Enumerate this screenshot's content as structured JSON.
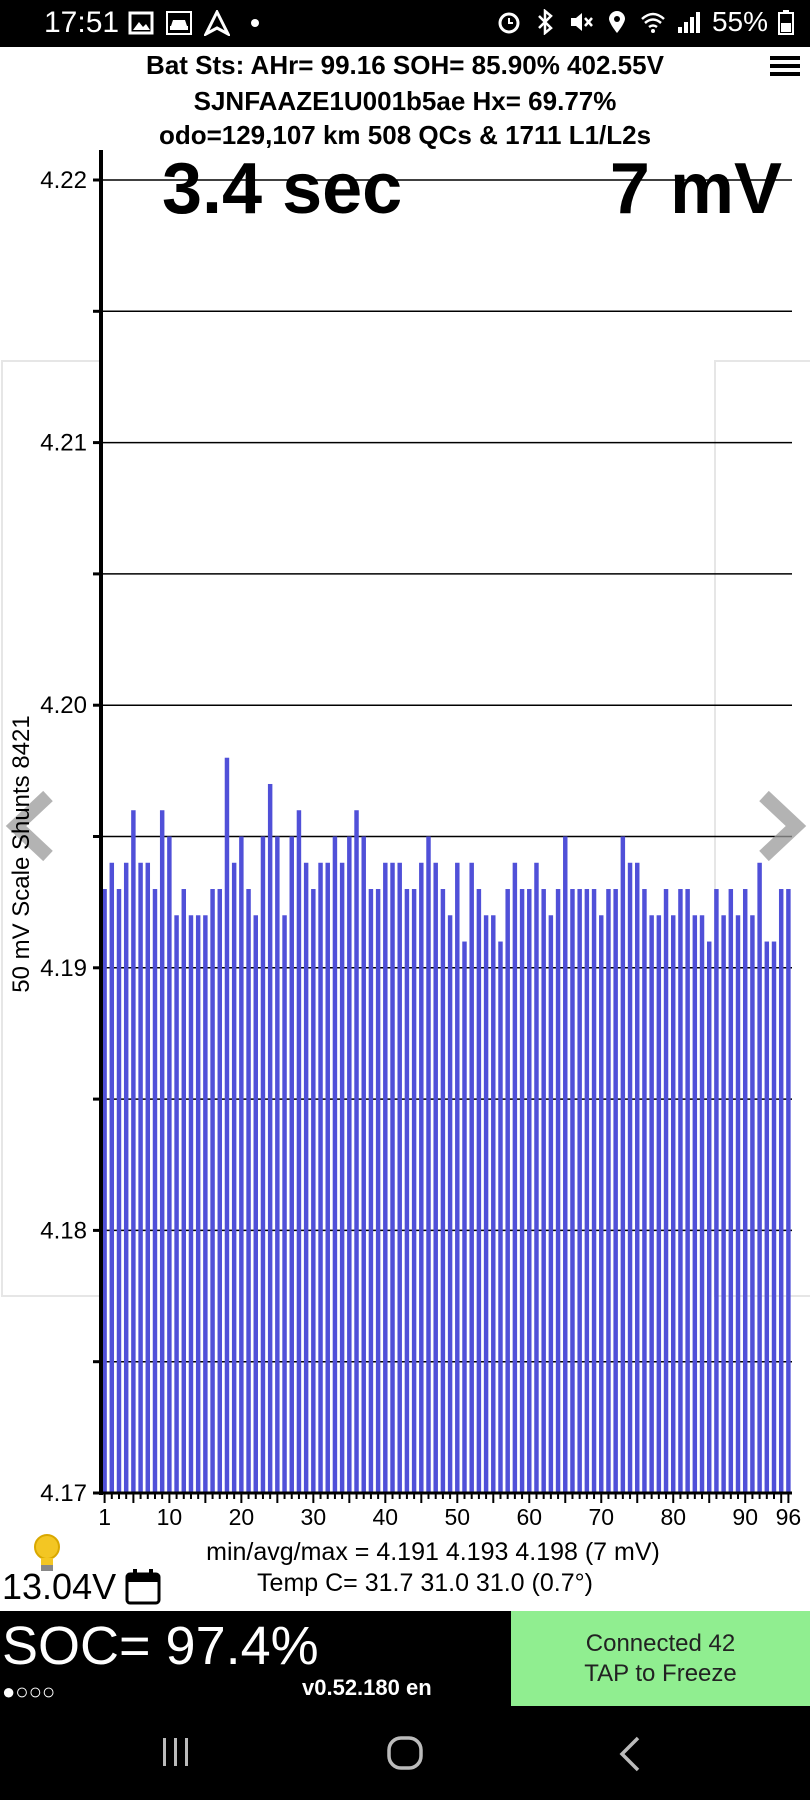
{
  "status_bar": {
    "time": "17:51",
    "battery": "55%"
  },
  "header": {
    "line1": "Bat Sts:  AHr= 99.16  SOH= 85.90%   402.55V",
    "line2": "SJNFAAZE1U001b5ae   Hx= 69.77%",
    "line3": "odo=129,107 km 508 QCs & 1711 L1/L2s"
  },
  "overlay": {
    "time": "3.4 sec",
    "spread": "7 mV"
  },
  "chart_data": {
    "type": "bar",
    "ylabel": "50 mV Scale Shunts 8421",
    "ylim": [
      4.17,
      4.22
    ],
    "y_ticks": [
      "4.22",
      "4.21",
      "4.20",
      "4.19",
      "4.18",
      "4.17"
    ],
    "x_ticks": [
      "1",
      "10",
      "20",
      "30",
      "40",
      "50",
      "60",
      "70",
      "80",
      "90",
      "96"
    ],
    "bar_color": "#5050d8",
    "cells": [
      1,
      2,
      3,
      4,
      5,
      6,
      7,
      8,
      9,
      10,
      11,
      12,
      13,
      14,
      15,
      16,
      17,
      18,
      19,
      20,
      21,
      22,
      23,
      24,
      25,
      26,
      27,
      28,
      29,
      30,
      31,
      32,
      33,
      34,
      35,
      36,
      37,
      38,
      39,
      40,
      41,
      42,
      43,
      44,
      45,
      46,
      47,
      48,
      49,
      50,
      51,
      52,
      53,
      54,
      55,
      56,
      57,
      58,
      59,
      60,
      61,
      62,
      63,
      64,
      65,
      66,
      67,
      68,
      69,
      70,
      71,
      72,
      73,
      74,
      75,
      76,
      77,
      78,
      79,
      80,
      81,
      82,
      83,
      84,
      85,
      86,
      87,
      88,
      89,
      90,
      91,
      92,
      93,
      94,
      95,
      96
    ],
    "values": [
      4.193,
      4.194,
      4.193,
      4.194,
      4.196,
      4.194,
      4.194,
      4.193,
      4.196,
      4.195,
      4.192,
      4.193,
      4.192,
      4.192,
      4.192,
      4.193,
      4.193,
      4.198,
      4.194,
      4.195,
      4.193,
      4.192,
      4.195,
      4.197,
      4.195,
      4.192,
      4.195,
      4.196,
      4.194,
      4.193,
      4.194,
      4.194,
      4.195,
      4.194,
      4.195,
      4.196,
      4.195,
      4.193,
      4.193,
      4.194,
      4.194,
      4.194,
      4.193,
      4.193,
      4.194,
      4.195,
      4.194,
      4.193,
      4.192,
      4.194,
      4.191,
      4.194,
      4.193,
      4.192,
      4.192,
      4.191,
      4.193,
      4.194,
      4.193,
      4.193,
      4.194,
      4.193,
      4.192,
      4.193,
      4.195,
      4.193,
      4.193,
      4.193,
      4.193,
      4.192,
      4.193,
      4.193,
      4.195,
      4.194,
      4.194,
      4.193,
      4.192,
      4.192,
      4.193,
      4.192,
      4.193,
      4.193,
      4.192,
      4.192,
      4.191,
      4.193,
      4.192,
      4.193,
      4.192,
      4.193,
      4.192,
      4.194,
      4.191,
      4.191,
      4.193,
      4.193
    ]
  },
  "stats": {
    "min_avg_max": "min/avg/max = 4.191 4.193 4.198  (7 mV)",
    "temp": "Temp C= 31.7  31.0  31.0  (0.7°)",
    "aux_voltage": "13.04V"
  },
  "bottom": {
    "soc": "SOC= 97.4%",
    "dots": "●○○○",
    "version": "v0.52.180 en",
    "connection_line1": "Connected 42",
    "connection_line2": "TAP to Freeze"
  },
  "icons": [
    "gallery-icon",
    "car-icon",
    "navigation-icon",
    "alarm-icon",
    "bluetooth-icon",
    "mute-icon",
    "location-icon",
    "wifi-icon",
    "signal-icon",
    "battery-icon",
    "menu-icon",
    "chevron-left-icon",
    "chevron-right-icon",
    "bulb-icon",
    "calendar-icon",
    "recents-icon",
    "home-icon",
    "back-icon"
  ]
}
